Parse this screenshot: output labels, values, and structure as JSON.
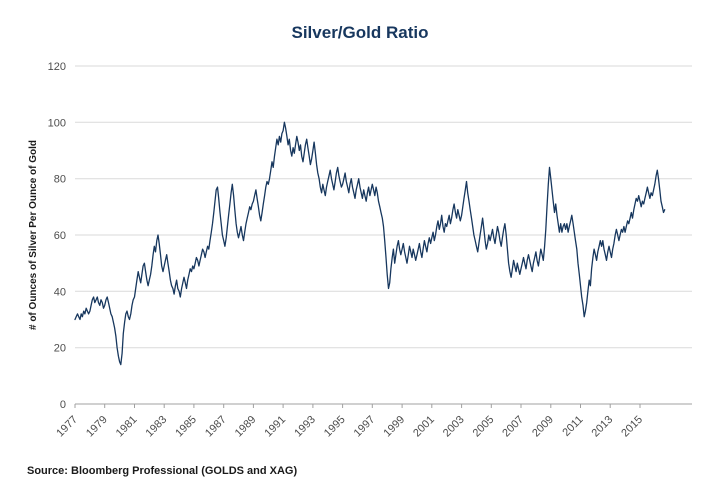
{
  "title": "Silver/Gold Ratio",
  "source": "Source: Bloomberg Professional (GOLDS and XAG)",
  "colors": {
    "accent": "#17375E",
    "line": "#17375E",
    "grid": "#DADADA",
    "axis": "#A0A0A0",
    "tick_text": "#4D4D4D",
    "label_text": "#1A1A1A"
  },
  "chart_data": {
    "type": "line",
    "title": "Silver/Gold Ratio",
    "xlabel": "",
    "ylabel": "# of Ounces of Silver Per Ounce of Gold",
    "ylim": [
      0,
      120
    ],
    "xlim": [
      1977,
      2018.5
    ],
    "yticks": [
      0,
      20,
      40,
      60,
      80,
      100,
      120
    ],
    "xticks": [
      1977,
      1979,
      1981,
      1983,
      1985,
      1987,
      1989,
      1991,
      1993,
      1995,
      1997,
      1999,
      2001,
      2003,
      2005,
      2007,
      2009,
      2011,
      2013,
      2015
    ],
    "grid": true,
    "legend": "none",
    "x_start": 1977.0,
    "x_step": 0.0833333,
    "series": [
      {
        "name": "Silver/Gold Ratio",
        "values": [
          30,
          31,
          32,
          31,
          30,
          32,
          31,
          33,
          32,
          34,
          33,
          32,
          33,
          35,
          37,
          38,
          36,
          37,
          38,
          36,
          35,
          37,
          36,
          34,
          35,
          37,
          38,
          36,
          34,
          32,
          31,
          29,
          27,
          24,
          20,
          17,
          15,
          14,
          18,
          25,
          29,
          32,
          33,
          31,
          30,
          32,
          35,
          37,
          38,
          41,
          44,
          47,
          45,
          43,
          46,
          49,
          50,
          47,
          44,
          42,
          44,
          46,
          49,
          53,
          56,
          54,
          58,
          60,
          57,
          53,
          49,
          47,
          49,
          51,
          53,
          50,
          47,
          44,
          42,
          41,
          39,
          42,
          44,
          41,
          40,
          38,
          41,
          43,
          45,
          43,
          41,
          44,
          46,
          48,
          47,
          49,
          48,
          50,
          52,
          51,
          49,
          51,
          53,
          55,
          54,
          52,
          54,
          56,
          55,
          58,
          61,
          64,
          68,
          72,
          76,
          77,
          73,
          68,
          64,
          60,
          58,
          56,
          59,
          63,
          67,
          71,
          75,
          78,
          74,
          69,
          64,
          61,
          59,
          61,
          63,
          60,
          58,
          61,
          64,
          66,
          68,
          70,
          69,
          71,
          72,
          74,
          76,
          73,
          70,
          67,
          65,
          68,
          71,
          74,
          77,
          79,
          78,
          80,
          83,
          86,
          84,
          88,
          91,
          94,
          92,
          95,
          93,
          96,
          97,
          100,
          98,
          95,
          92,
          94,
          90,
          88,
          91,
          89,
          92,
          95,
          93,
          90,
          92,
          88,
          86,
          89,
          92,
          94,
          91,
          88,
          85,
          87,
          90,
          93,
          89,
          85,
          82,
          80,
          77,
          75,
          78,
          76,
          74,
          77,
          79,
          81,
          83,
          80,
          78,
          76,
          79,
          82,
          84,
          81,
          79,
          77,
          78,
          80,
          82,
          79,
          77,
          75,
          78,
          80,
          77,
          75,
          73,
          76,
          78,
          80,
          77,
          75,
          73,
          76,
          74,
          72,
          75,
          77,
          74,
          76,
          78,
          76,
          74,
          77,
          75,
          72,
          70,
          68,
          66,
          63,
          58,
          52,
          46,
          41,
          43,
          48,
          52,
          55,
          50,
          53,
          56,
          58,
          55,
          53,
          55,
          57,
          54,
          52,
          50,
          53,
          56,
          54,
          52,
          55,
          53,
          51,
          53,
          55,
          57,
          54,
          52,
          55,
          58,
          56,
          54,
          57,
          59,
          57,
          59,
          61,
          58,
          60,
          63,
          65,
          62,
          64,
          67,
          63,
          61,
          64,
          63,
          65,
          67,
          64,
          66,
          69,
          71,
          68,
          66,
          69,
          67,
          65,
          67,
          70,
          73,
          76,
          79,
          75,
          72,
          69,
          66,
          63,
          60,
          58,
          56,
          54,
          57,
          60,
          63,
          66,
          62,
          58,
          55,
          57,
          60,
          58,
          60,
          62,
          59,
          57,
          60,
          63,
          61,
          58,
          56,
          59,
          62,
          64,
          60,
          55,
          50,
          47,
          45,
          48,
          51,
          49,
          47,
          50,
          48,
          46,
          48,
          50,
          52,
          50,
          48,
          51,
          53,
          51,
          49,
          47,
          50,
          52,
          54,
          51,
          49,
          52,
          55,
          53,
          51,
          56,
          62,
          70,
          78,
          84,
          80,
          76,
          72,
          68,
          71,
          67,
          64,
          61,
          64,
          61,
          63,
          64,
          62,
          64,
          61,
          63,
          65,
          67,
          64,
          61,
          58,
          55,
          50,
          46,
          42,
          38,
          35,
          31,
          33,
          36,
          40,
          44,
          42,
          48,
          52,
          55,
          53,
          51,
          54,
          56,
          58,
          56,
          58,
          55,
          53,
          51,
          54,
          56,
          54,
          52,
          55,
          57,
          60,
          62,
          60,
          58,
          60,
          62,
          61,
          63,
          61,
          63,
          65,
          64,
          66,
          68,
          66,
          69,
          71,
          73,
          72,
          74,
          72,
          70,
          72,
          71,
          73,
          75,
          77,
          75,
          73,
          75,
          74,
          76,
          78,
          81,
          83,
          80,
          76,
          72,
          70,
          68,
          69
        ]
      }
    ]
  }
}
